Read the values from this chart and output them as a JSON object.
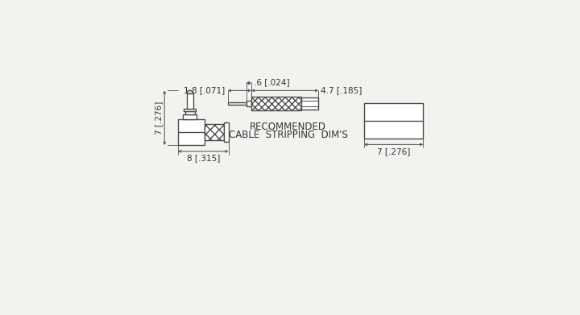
{
  "bg_color": "#f2f2ee",
  "line_color": "#4a4a4a",
  "text_color": "#333333",
  "font_family": "DejaVu Sans",
  "caption_line1": "RECOMMENDED",
  "caption_line2": "CABLE  STRIPPING  DIM'S",
  "dim_06": ".6 [.024]",
  "dim_18": "1.8 [.071]",
  "dim_47": "4.7 [.185]",
  "dim_7_v": "7 [.276]",
  "dim_8": "8 [.315]",
  "dim_7_h": "7 [.276]"
}
